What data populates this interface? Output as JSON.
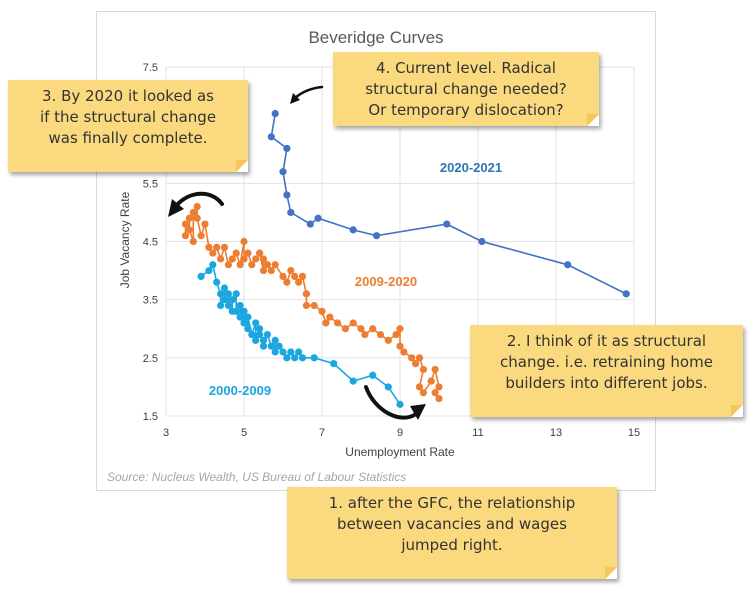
{
  "chart_data": {
    "type": "scatter",
    "title": "Beveridge Curves",
    "xlabel": "Unemployment Rate",
    "ylabel": "Job Vacancy Rate",
    "xlim": [
      3,
      15
    ],
    "ylim": [
      1.5,
      7.5
    ],
    "xticks": [
      3,
      5,
      7,
      9,
      11,
      13,
      15
    ],
    "yticks": [
      1.5,
      2.5,
      3.5,
      4.5,
      5.5,
      7.5
    ],
    "grid": true,
    "source": "Source: Nucleus Wealth, US Bureau of Labour Statistics",
    "series": [
      {
        "name": "2000-2009",
        "color": "#1aa7e0",
        "points": [
          [
            3.9,
            3.9
          ],
          [
            4.1,
            4.0
          ],
          [
            4.2,
            4.1
          ],
          [
            4.3,
            3.8
          ],
          [
            4.4,
            3.6
          ],
          [
            4.4,
            3.4
          ],
          [
            4.5,
            3.5
          ],
          [
            4.5,
            3.7
          ],
          [
            4.6,
            3.6
          ],
          [
            4.6,
            3.4
          ],
          [
            4.7,
            3.3
          ],
          [
            4.7,
            3.5
          ],
          [
            4.8,
            3.6
          ],
          [
            4.8,
            3.3
          ],
          [
            4.9,
            3.2
          ],
          [
            4.9,
            3.4
          ],
          [
            5.0,
            3.1
          ],
          [
            5.0,
            3.3
          ],
          [
            5.1,
            3.0
          ],
          [
            5.1,
            3.2
          ],
          [
            5.2,
            2.9
          ],
          [
            5.3,
            3.1
          ],
          [
            5.3,
            2.8
          ],
          [
            5.4,
            3.0
          ],
          [
            5.4,
            2.9
          ],
          [
            5.5,
            2.8
          ],
          [
            5.5,
            2.7
          ],
          [
            5.6,
            2.9
          ],
          [
            5.7,
            2.7
          ],
          [
            5.8,
            2.8
          ],
          [
            5.8,
            2.6
          ],
          [
            5.9,
            2.7
          ],
          [
            6.0,
            2.6
          ],
          [
            6.1,
            2.5
          ],
          [
            6.2,
            2.6
          ],
          [
            6.3,
            2.5
          ],
          [
            6.4,
            2.6
          ],
          [
            6.5,
            2.5
          ],
          [
            6.8,
            2.5
          ],
          [
            7.3,
            2.4
          ],
          [
            7.8,
            2.1
          ],
          [
            8.3,
            2.2
          ],
          [
            8.7,
            2.0
          ],
          [
            9.0,
            1.7
          ]
        ]
      },
      {
        "name": "2009-2020",
        "color": "#ed7d31",
        "points": [
          [
            3.5,
            4.6
          ],
          [
            3.5,
            4.8
          ],
          [
            3.6,
            4.9
          ],
          [
            3.6,
            4.7
          ],
          [
            3.7,
            4.5
          ],
          [
            3.7,
            5.0
          ],
          [
            3.8,
            5.1
          ],
          [
            3.8,
            4.9
          ],
          [
            3.9,
            4.6
          ],
          [
            4.0,
            4.8
          ],
          [
            4.1,
            4.4
          ],
          [
            4.2,
            4.3
          ],
          [
            4.3,
            4.4
          ],
          [
            4.4,
            4.2
          ],
          [
            4.5,
            4.4
          ],
          [
            4.6,
            4.1
          ],
          [
            4.7,
            4.2
          ],
          [
            4.8,
            4.3
          ],
          [
            4.9,
            4.1
          ],
          [
            5.0,
            4.5
          ],
          [
            5.0,
            4.2
          ],
          [
            5.1,
            4.3
          ],
          [
            5.2,
            4.1
          ],
          [
            5.3,
            4.2
          ],
          [
            5.4,
            4.3
          ],
          [
            5.5,
            4.0
          ],
          [
            5.5,
            4.2
          ],
          [
            5.6,
            4.1
          ],
          [
            5.7,
            4.0
          ],
          [
            5.8,
            4.1
          ],
          [
            6.0,
            3.9
          ],
          [
            6.1,
            3.8
          ],
          [
            6.2,
            4.0
          ],
          [
            6.3,
            3.9
          ],
          [
            6.4,
            3.8
          ],
          [
            6.5,
            3.9
          ],
          [
            6.6,
            3.6
          ],
          [
            6.6,
            3.4
          ],
          [
            6.8,
            3.4
          ],
          [
            7.0,
            3.3
          ],
          [
            7.1,
            3.1
          ],
          [
            7.2,
            3.2
          ],
          [
            7.4,
            3.1
          ],
          [
            7.6,
            3.0
          ],
          [
            7.8,
            3.1
          ],
          [
            8.0,
            3.0
          ],
          [
            8.1,
            2.9
          ],
          [
            8.3,
            3.0
          ],
          [
            8.5,
            2.9
          ],
          [
            8.7,
            2.8
          ],
          [
            8.9,
            2.9
          ],
          [
            9.0,
            3.0
          ],
          [
            9.0,
            2.7
          ],
          [
            9.1,
            2.6
          ],
          [
            9.3,
            2.5
          ],
          [
            9.4,
            2.4
          ],
          [
            9.5,
            2.5
          ],
          [
            9.6,
            2.3
          ],
          [
            9.5,
            2.0
          ],
          [
            9.6,
            1.9
          ],
          [
            9.8,
            2.1
          ],
          [
            9.9,
            2.3
          ],
          [
            10.0,
            2.0
          ],
          [
            9.9,
            1.9
          ],
          [
            10.0,
            1.8
          ]
        ]
      },
      {
        "name": "2020-2021",
        "color": "#4472c4",
        "points": [
          [
            5.8,
            6.7
          ],
          [
            5.7,
            6.3
          ],
          [
            6.1,
            6.1
          ],
          [
            6.0,
            5.7
          ],
          [
            6.1,
            5.3
          ],
          [
            6.2,
            5.0
          ],
          [
            6.7,
            4.8
          ],
          [
            6.9,
            4.9
          ],
          [
            7.8,
            4.7
          ],
          [
            8.4,
            4.6
          ],
          [
            10.2,
            4.8
          ],
          [
            11.1,
            4.5
          ],
          [
            13.3,
            4.1
          ],
          [
            14.8,
            3.6
          ]
        ]
      }
    ],
    "series_labels": [
      "2000-2009",
      "2009-2020",
      "2020-2021"
    ]
  },
  "notes": [
    {
      "text": "1. after the GFC, the relationship\nbetween vacancies and wages\njumped right."
    },
    {
      "text": "2. I think of it as structural\nchange. i.e. retraining home\nbuilders into different jobs."
    },
    {
      "text": "3. By 2020 it looked as\nif the structural change\nwas finally complete."
    },
    {
      "text": "4. Current level. Radical\nstructural change needed?\nOr temporary dislocation?"
    }
  ]
}
